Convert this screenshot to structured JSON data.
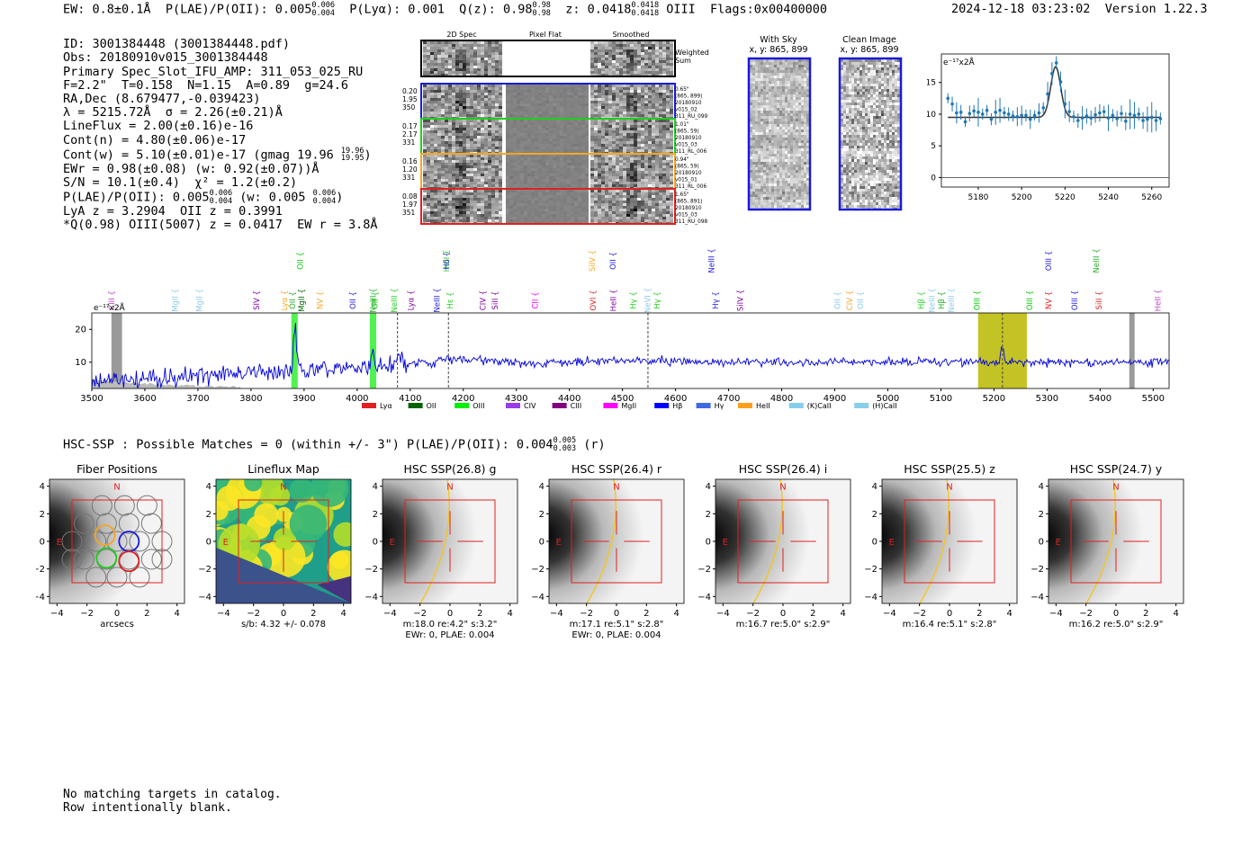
{
  "header": {
    "ew": "EW: 0.8±0.1Å",
    "plae_label": "P(LAE)/P(OII): 0.005",
    "plae_hi": "0.006",
    "plae_lo": "0.004",
    "plya": "P(Lyα): 0.001",
    "qz_label": "Q(z): 0.98",
    "qz_hi": "0.98",
    "qz_lo": "0.98",
    "z_label": "z: 0.0418",
    "z_hi": "0.0418",
    "z_lo": "0.0418",
    "line": "OIII",
    "flags": "Flags:0x00400000",
    "datetime": "2024-12-18 03:23:02",
    "version": "Version 1.22.3"
  },
  "info": {
    "id": "ID: 3001384448 (3001384448.pdf)",
    "obs": "Obs: 20180910v015_3001384448",
    "primary": "Primary Spec_Slot_IFU_AMP: 311_053_025_RU",
    "params": "F=2.2\"  T=0.158  N=1.15  A=0.89  g=24.6",
    "radec": "RA,Dec (8.679477,-0.039423)",
    "lambda": "λ = 5215.72Å  σ = 2.26(±0.21)Å",
    "lineflux": "LineFlux = 2.00(±0.16)e-16",
    "contn": "Cont(n) = 4.80(±0.06)e-17",
    "contw": "Cont(w) = 5.10(±0.01)e-17 (gmag 19.96",
    "contw_hi": "19.96",
    "contw_lo": "19.95",
    "ewr": "EWr = 0.98(±0.08) (w: 0.92(±0.07))Å",
    "sn": "S/N = 10.1(±0.4)  χ² = 1.2(±0.2)",
    "plae": "P(LAE)/P(OII): 0.005",
    "plae_hi": "0.006",
    "plae_lo": "0.004",
    "plae_w": "(w: 0.005",
    "plae_w_hi": "0.006",
    "plae_w_lo": "0.004",
    "lya": "LyA z = 3.2904  OII z = 0.3991",
    "q": "*Q(0.98) OIII(5007) z = 0.0417  EW r = 3.8Å"
  },
  "cutouts": {
    "col_headers": [
      "2D Spec",
      "Pixel Flat",
      "Smoothed"
    ],
    "weighted_label": [
      "Weighted",
      "Sum"
    ],
    "rows": [
      {
        "left": [
          "0.20",
          "1.95",
          "350"
        ],
        "right": [
          "0.65\"",
          "(865, 899)",
          "20180910",
          "v015_02",
          "311_RU_099"
        ],
        "color": "#1a1adc"
      },
      {
        "left": [
          "0.17",
          "2.17",
          "331"
        ],
        "right": [
          "1.01\"",
          "(865, 59)",
          "20180910",
          "v015_03",
          "311_RL_006"
        ],
        "color": "#22cc22"
      },
      {
        "left": [
          "0.16",
          "1.20",
          "331"
        ],
        "right": [
          "0.94\"",
          "(865, 59)",
          "20180910",
          "v015_01",
          "311_RL_006"
        ],
        "color": "#f5a623"
      },
      {
        "left": [
          "0.08",
          "1.97",
          "351"
        ],
        "right": [
          "1.65\"",
          "(865, 891)",
          "20180910",
          "v015_03",
          "311_RU_098"
        ],
        "color": "#e02020"
      }
    ],
    "with_sky": [
      "With Sky",
      "x, y: 865, 899"
    ],
    "clean_image": [
      "Clean Image",
      "x, y: 865, 899"
    ]
  },
  "zoom_plot": {
    "unit": "e⁻¹⁷x2Å",
    "xlim": [
      5163,
      5268
    ],
    "ylim": [
      -1.5,
      19.5
    ],
    "xticks": [
      "5180",
      "5200",
      "5220",
      "5240",
      "5260"
    ],
    "yticks": [
      "0",
      "5",
      "10",
      "15"
    ],
    "fit_continuum": 9.5,
    "fit_peak": 17.5,
    "fit_center": 5215.7,
    "fit_sigma": 2.3,
    "points_x": [
      5166,
      5168,
      5170,
      5172,
      5174,
      5176,
      5178,
      5180,
      5182,
      5184,
      5186,
      5188,
      5190,
      5192,
      5194,
      5196,
      5198,
      5200,
      5202,
      5204,
      5206,
      5208,
      5210,
      5212,
      5214,
      5216,
      5218,
      5220,
      5222,
      5224,
      5226,
      5228,
      5230,
      5232,
      5234,
      5236,
      5238,
      5240,
      5242,
      5244,
      5246,
      5248,
      5250,
      5252,
      5254,
      5256,
      5258,
      5260,
      5262,
      5264
    ],
    "points_y": [
      12.5,
      11.6,
      10.2,
      10.3,
      8.8,
      10.1,
      10.5,
      10.3,
      10.0,
      10.6,
      9.2,
      10.3,
      10.6,
      10.2,
      10.0,
      9.7,
      9.6,
      9.8,
      9.8,
      9.2,
      9.8,
      10.2,
      11.0,
      13.2,
      16.4,
      18.1,
      15.1,
      11.6,
      10.4,
      9.6,
      9.0,
      9.4,
      9.7,
      9.4,
      9.9,
      10.2,
      10.4,
      9.4,
      9.8,
      9.3,
      10.1,
      8.9,
      10.0,
      9.8,
      10.0,
      9.0,
      9.2,
      9.5,
      9.0,
      9.3
    ]
  },
  "line_labels": [
    {
      "name": "CIII",
      "x": 3537,
      "c": "#c040c0",
      "row": 2
    },
    {
      "name": "MgII",
      "x": 3657,
      "c": "#8ec8e8",
      "row": 2
    },
    {
      "name": "MgII",
      "x": 3703,
      "c": "#8ec8e8",
      "row": 2
    },
    {
      "name": "SIV",
      "x": 3810,
      "c": "#8000a0",
      "row": 2
    },
    {
      "name": "Lyα",
      "x": 3863,
      "c": "#f5a623",
      "row": 2
    },
    {
      "name": "OII",
      "x": 3878,
      "c": "#22aa22",
      "row": 2
    },
    {
      "name": "OII",
      "x": 3893,
      "c": "#00cc00",
      "row": 1
    },
    {
      "name": "MgII",
      "x": 3895,
      "c": "#006400",
      "row": 2
    },
    {
      "name": "NV",
      "x": 3930,
      "c": "#f5a623",
      "row": 2
    },
    {
      "name": "OII",
      "x": 3992,
      "c": "#1a1adc",
      "row": 2
    },
    {
      "name": "OII",
      "x": 4033,
      "c": "#00cc00",
      "row": 2
    },
    {
      "name": "NeIII",
      "x": 4030,
      "c": "#22aa22",
      "row": 2
    },
    {
      "name": "NeIII",
      "x": 4070,
      "c": "#22cc22",
      "row": 2
    },
    {
      "name": "Lyα",
      "x": 4101,
      "c": "#8000a0",
      "row": 2
    },
    {
      "name": "NeIII",
      "x": 4150,
      "c": "#1a1adc",
      "row": 2
    },
    {
      "name": "HeII",
      "x": 4168,
      "c": "#22cc22",
      "row": 1
    },
    {
      "name": "Hδ",
      "x": 4168,
      "c": "#1a1adc",
      "row": 1
    },
    {
      "name": "Hε",
      "x": 4175,
      "c": "#22cc22",
      "row": 2
    },
    {
      "name": "CIV",
      "x": 4237,
      "c": "#8000a0",
      "row": 2
    },
    {
      "name": "SiII",
      "x": 4260,
      "c": "#8000a0",
      "row": 2
    },
    {
      "name": "CII",
      "x": 4335,
      "c": "#ff00ff",
      "row": 2
    },
    {
      "name": "SiIV",
      "x": 4443,
      "c": "#f5a623",
      "row": 1
    },
    {
      "name": "OVI",
      "x": 4445,
      "c": "#e02020",
      "row": 2
    },
    {
      "name": "OII",
      "x": 4482,
      "c": "#1a1adc",
      "row": 1
    },
    {
      "name": "HeII",
      "x": 4483,
      "c": "#8000a0",
      "row": 2
    },
    {
      "name": "Hγ",
      "x": 4520,
      "c": "#22cc22",
      "row": 2
    },
    {
      "name": "NeVI",
      "x": 4547,
      "c": "#8ec8e8",
      "row": 2
    },
    {
      "name": "Hγ",
      "x": 4565,
      "c": "#22cc22",
      "row": 2
    },
    {
      "name": "NeIII",
      "x": 4668,
      "c": "#1a1adc",
      "row": 1
    },
    {
      "name": "Hγ",
      "x": 4675,
      "c": "#1a1adc",
      "row": 2
    },
    {
      "name": "SiIV",
      "x": 4722,
      "c": "#8000a0",
      "row": 2
    },
    {
      "name": "OII",
      "x": 4905,
      "c": "#8ec8e8",
      "row": 2
    },
    {
      "name": "CIV",
      "x": 4928,
      "c": "#f5a623",
      "row": 2
    },
    {
      "name": "OII",
      "x": 4948,
      "c": "#8ec8e8",
      "row": 2
    },
    {
      "name": "Hβ",
      "x": 5063,
      "c": "#22cc22",
      "row": 2
    },
    {
      "name": "NeIII",
      "x": 5083,
      "c": "#8ec8e8",
      "row": 2
    },
    {
      "name": "Hβ",
      "x": 5101,
      "c": "#22aa22",
      "row": 2
    },
    {
      "name": "NeIII",
      "x": 5120,
      "c": "#8ec8e8",
      "row": 2
    },
    {
      "name": "OIII",
      "x": 5168,
      "c": "#00cc00",
      "row": 2
    },
    {
      "name": "OIII",
      "x": 5267,
      "c": "#00cc00",
      "row": 2
    },
    {
      "name": "OIII",
      "x": 5303,
      "c": "#1a1adc",
      "row": 1
    },
    {
      "name": "NV",
      "x": 5303,
      "c": "#e02020",
      "row": 2
    },
    {
      "name": "OIII",
      "x": 5352,
      "c": "#1a1adc",
      "row": 2
    },
    {
      "name": "NeIII",
      "x": 5393,
      "c": "#22aa22",
      "row": 1
    },
    {
      "name": "SiII",
      "x": 5398,
      "c": "#e02020",
      "row": 2
    },
    {
      "name": "HeII",
      "x": 5509,
      "c": "#c040c0",
      "row": 2
    }
  ],
  "chart_data": {
    "type": "line",
    "unit": "e⁻¹⁷x2Å",
    "xlim": [
      3500,
      5530
    ],
    "ylim": [
      2,
      25
    ],
    "xticks": [
      "3500",
      "3600",
      "3700",
      "3800",
      "3900",
      "4000",
      "4100",
      "4200",
      "4300",
      "4400",
      "4500",
      "4600",
      "4700",
      "4800",
      "4900",
      "5000",
      "5100",
      "5200",
      "5300",
      "5400",
      "5500"
    ],
    "yticks": [
      "10",
      "20"
    ],
    "legend": [
      {
        "name": "Lyα",
        "c": "#e02020"
      },
      {
        "name": "OII",
        "c": "#006400"
      },
      {
        "name": "OIII",
        "c": "#00ee00"
      },
      {
        "name": "CIV",
        "c": "#9a3ce8"
      },
      {
        "name": "CIII",
        "c": "#800080"
      },
      {
        "name": "MgII",
        "c": "#ff00ff"
      },
      {
        "name": "Hβ",
        "c": "#0000ff"
      },
      {
        "name": "Hγ",
        "c": "#4169e1"
      },
      {
        "name": "HeII",
        "c": "#ff9f1c"
      },
      {
        "name": "(K)CaII",
        "c": "#87ceeb"
      },
      {
        "name": "(H)CaII",
        "c": "#87ceeb"
      }
    ],
    "shaded_regions": [
      {
        "x0": 3537,
        "x1": 3557,
        "c": "#888888"
      },
      {
        "x0": 3876,
        "x1": 3888,
        "c": "#33ee33"
      },
      {
        "x0": 4024,
        "x1": 4036,
        "c": "#33ee33"
      },
      {
        "x0": 5170,
        "x1": 5262,
        "c": "#b8b800"
      },
      {
        "x0": 5455,
        "x1": 5465,
        "c": "#888888"
      }
    ],
    "dashed_lines": [
      4076,
      4172,
      4548,
      5216
    ],
    "peaks": [
      {
        "x": 3883,
        "y": 21.5
      },
      {
        "x": 4030,
        "y": 12.5
      },
      {
        "x": 5216,
        "y": 15.5
      }
    ]
  },
  "hsc": {
    "title": "HSC-SSP : Possible Matches = 0 (within +/- 3\")  P(LAE)/P(OII): 0.004",
    "hi": "0.005",
    "lo": "0.003",
    "band": "(r)"
  },
  "panels": [
    {
      "title": "Fiber Positions",
      "caption1": "arcsecs",
      "caption2": "",
      "kind": "fiber"
    },
    {
      "title": "Lineflux Map",
      "caption1": "s/b: 4.32 +/- 0.078",
      "caption2": "",
      "kind": "lineflux"
    },
    {
      "title": "HSC SSP(26.8) g",
      "caption1": "m:18.0  re:4.2\"  s:3.2\"",
      "caption2": "EWr: 0, PLAE: 0.004",
      "kind": "hsc"
    },
    {
      "title": "HSC SSP(26.4) r",
      "caption1": "m:17.1  re:5.1\"  s:2.8\"",
      "caption2": "EWr: 0, PLAE: 0.004",
      "kind": "hsc"
    },
    {
      "title": "HSC SSP(26.4) i",
      "caption1": "m:16.7  re:5.0\"  s:2.9\"",
      "caption2": "",
      "kind": "hsc"
    },
    {
      "title": "HSC SSP(25.5) z",
      "caption1": "m:16.4  re:5.1\"  s:2.8\"",
      "caption2": "",
      "kind": "hsc"
    },
    {
      "title": "HSC SSP(24.7) y",
      "caption1": "m:16.2  re:5.0\"  s:2.9\"",
      "caption2": "",
      "kind": "hsc"
    }
  ],
  "panel_ticks": {
    "x": [
      "−4",
      "−2",
      "0",
      "2",
      "4"
    ],
    "y": [
      "4",
      "2",
      "0",
      "−2",
      "−4"
    ],
    "north": "N",
    "east": "E"
  },
  "footer": {
    "line1": "No matching targets in catalog.",
    "line2": "Row intentionally blank."
  }
}
